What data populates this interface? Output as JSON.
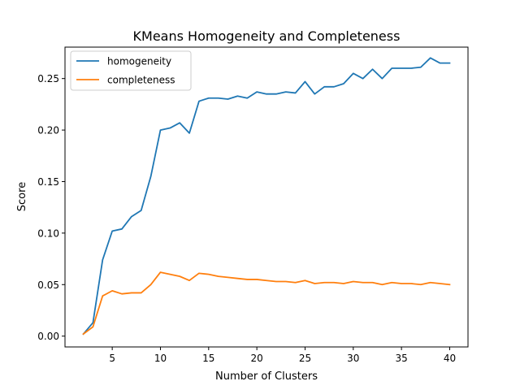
{
  "chart_data": {
    "type": "line",
    "title": "KMeans Homogeneity and Completeness",
    "xlabel": "Number of Clusters",
    "ylabel": "Score",
    "xlim": [
      0.1,
      41.9
    ],
    "ylim": [
      -0.0105,
      0.2805
    ],
    "xticks": [
      5,
      10,
      15,
      20,
      25,
      30,
      35,
      40
    ],
    "xtick_labels": [
      "5",
      "10",
      "15",
      "20",
      "25",
      "30",
      "35",
      "40"
    ],
    "yticks": [
      0.0,
      0.05,
      0.1,
      0.15,
      0.2,
      0.25
    ],
    "ytick_labels": [
      "0.00",
      "0.05",
      "0.10",
      "0.15",
      "0.20",
      "0.25"
    ],
    "grid": false,
    "legend_position": "top-left",
    "x": [
      2,
      3,
      4,
      5,
      6,
      7,
      8,
      9,
      10,
      11,
      12,
      13,
      14,
      15,
      16,
      17,
      18,
      19,
      20,
      21,
      22,
      23,
      24,
      25,
      26,
      27,
      28,
      29,
      30,
      31,
      32,
      33,
      34,
      35,
      36,
      37,
      38,
      39,
      40
    ],
    "series": [
      {
        "name": "homogeneity",
        "color": "#1f77b4",
        "values": [
          0.002,
          0.013,
          0.074,
          0.102,
          0.104,
          0.116,
          0.122,
          0.155,
          0.2,
          0.202,
          0.207,
          0.197,
          0.228,
          0.231,
          0.231,
          0.23,
          0.233,
          0.231,
          0.237,
          0.235,
          0.235,
          0.237,
          0.236,
          0.247,
          0.235,
          0.242,
          0.242,
          0.245,
          0.255,
          0.25,
          0.259,
          0.25,
          0.26,
          0.26,
          0.26,
          0.261,
          0.27,
          0.265,
          0.265
        ]
      },
      {
        "name": "completeness",
        "color": "#ff7f0e",
        "values": [
          0.002,
          0.009,
          0.039,
          0.044,
          0.041,
          0.042,
          0.042,
          0.05,
          0.062,
          0.06,
          0.058,
          0.054,
          0.061,
          0.06,
          0.058,
          0.057,
          0.056,
          0.055,
          0.055,
          0.054,
          0.053,
          0.053,
          0.052,
          0.054,
          0.051,
          0.052,
          0.052,
          0.051,
          0.053,
          0.052,
          0.052,
          0.05,
          0.052,
          0.051,
          0.051,
          0.05,
          0.052,
          0.051,
          0.05
        ]
      }
    ]
  }
}
